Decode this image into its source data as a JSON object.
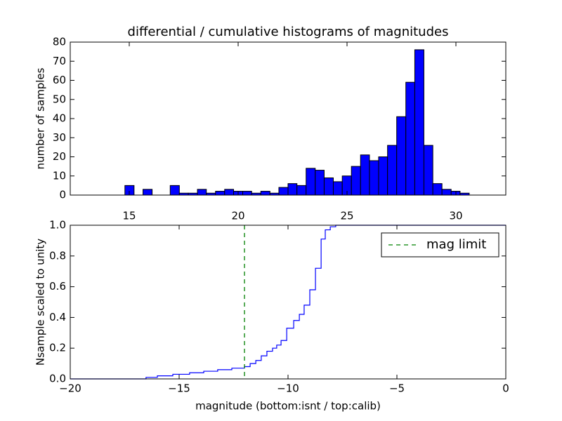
{
  "chart_data": [
    {
      "type": "histogram",
      "title": "differential / cumulative histograms of magnitudes",
      "ylabel": "number of samples",
      "bins": [
        14.8,
        15.22,
        15.63,
        16.05,
        16.46,
        16.88,
        17.3,
        17.71,
        18.13,
        18.54,
        18.96,
        19.38,
        19.79,
        20.21,
        20.62,
        21.04,
        21.46,
        21.87,
        22.29,
        22.7,
        23.12,
        23.54,
        23.95,
        24.37,
        24.78,
        25.2,
        25.62,
        26.03,
        26.45,
        26.86,
        27.28,
        27.7,
        28.11,
        28.53,
        28.94,
        29.36,
        29.78,
        30.19,
        30.61
      ],
      "values": [
        5,
        0,
        3,
        0,
        0,
        5,
        1,
        1,
        3,
        1,
        2,
        3,
        2,
        2,
        1,
        2,
        1,
        4,
        6,
        5,
        14,
        13,
        9,
        7,
        10,
        15,
        21,
        18,
        20,
        26,
        41,
        59,
        76,
        26,
        6,
        3,
        2,
        1
      ],
      "color": "#0000ff",
      "xlim": [
        12.29,
        32.29
      ],
      "xticks": [
        15,
        20,
        25,
        30
      ],
      "ylim": [
        0,
        80
      ],
      "yticks": [
        0,
        10,
        20,
        30,
        40,
        50,
        60,
        70,
        80
      ]
    },
    {
      "type": "step",
      "xlabel": "magnitude (bottom:isnt / top:calib)",
      "ylabel": "Nsample scaled to unity",
      "x": [
        -20,
        -16.52,
        -16.0,
        -15.29,
        -14.52,
        -13.87,
        -13.23,
        -12.58,
        -12.0,
        -11.74,
        -11.48,
        -11.23,
        -10.97,
        -10.71,
        -10.52,
        -10.32,
        -10.06,
        -9.74,
        -9.48,
        -9.26,
        -9.0,
        -8.74,
        -8.48,
        -8.29,
        -8.06,
        -7.81,
        0
      ],
      "values": [
        0,
        0.01,
        0.02,
        0.03,
        0.04,
        0.05,
        0.06,
        0.07,
        0.08,
        0.1,
        0.12,
        0.15,
        0.18,
        0.2,
        0.22,
        0.25,
        0.33,
        0.38,
        0.42,
        0.48,
        0.58,
        0.72,
        0.91,
        0.97,
        0.99,
        1.0,
        1.0
      ],
      "color": "#0000ff",
      "vlines": [
        {
          "name": "mag limit",
          "x": -12,
          "color": "#008000"
        }
      ],
      "legend": "upper right",
      "xlim": [
        -20,
        0
      ],
      "xticks": [
        {
          "value": -20,
          "label": "−20"
        },
        {
          "value": -15,
          "label": "−15"
        },
        {
          "value": -10,
          "label": "−10"
        },
        {
          "value": -5,
          "label": "−5"
        },
        {
          "value": 0,
          "label": "0"
        }
      ],
      "ylim": [
        0,
        1
      ],
      "yticks": [
        {
          "value": 0,
          "label": "0.0"
        },
        {
          "value": 0.2,
          "label": "0.2"
        },
        {
          "value": 0.4,
          "label": "0.4"
        },
        {
          "value": 0.6,
          "label": "0.6"
        },
        {
          "value": 0.8,
          "label": "0.8"
        },
        {
          "value": 1,
          "label": "1.0"
        }
      ]
    }
  ]
}
